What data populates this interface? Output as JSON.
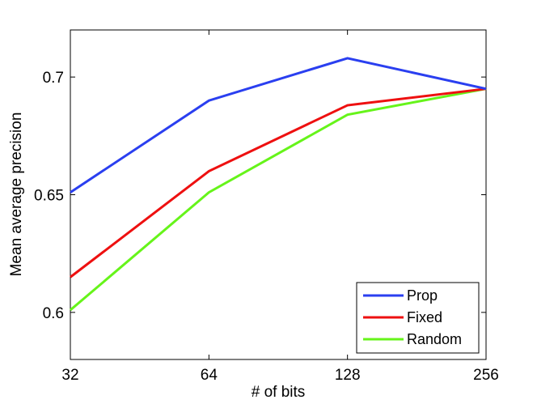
{
  "chart_data": {
    "type": "line",
    "title": "",
    "xlabel": "# of bits",
    "ylabel": "Mean average precision",
    "categories": [
      "32",
      "64",
      "128",
      "256"
    ],
    "ylim": [
      0.58,
      0.72
    ],
    "yticks": [
      0.6,
      0.65,
      0.7
    ],
    "ytick_labels": [
      "0.6",
      "0.65",
      "0.7"
    ],
    "grid": false,
    "legend_position": "bottom-right",
    "series": [
      {
        "name": "Prop",
        "color": "#2a3ff0",
        "values": [
          0.651,
          0.69,
          0.708,
          0.695
        ]
      },
      {
        "name": "Fixed",
        "color": "#ee1010",
        "values": [
          0.615,
          0.66,
          0.688,
          0.695
        ]
      },
      {
        "name": "Random",
        "color": "#66f41a",
        "values": [
          0.601,
          0.651,
          0.684,
          0.695
        ]
      }
    ]
  }
}
